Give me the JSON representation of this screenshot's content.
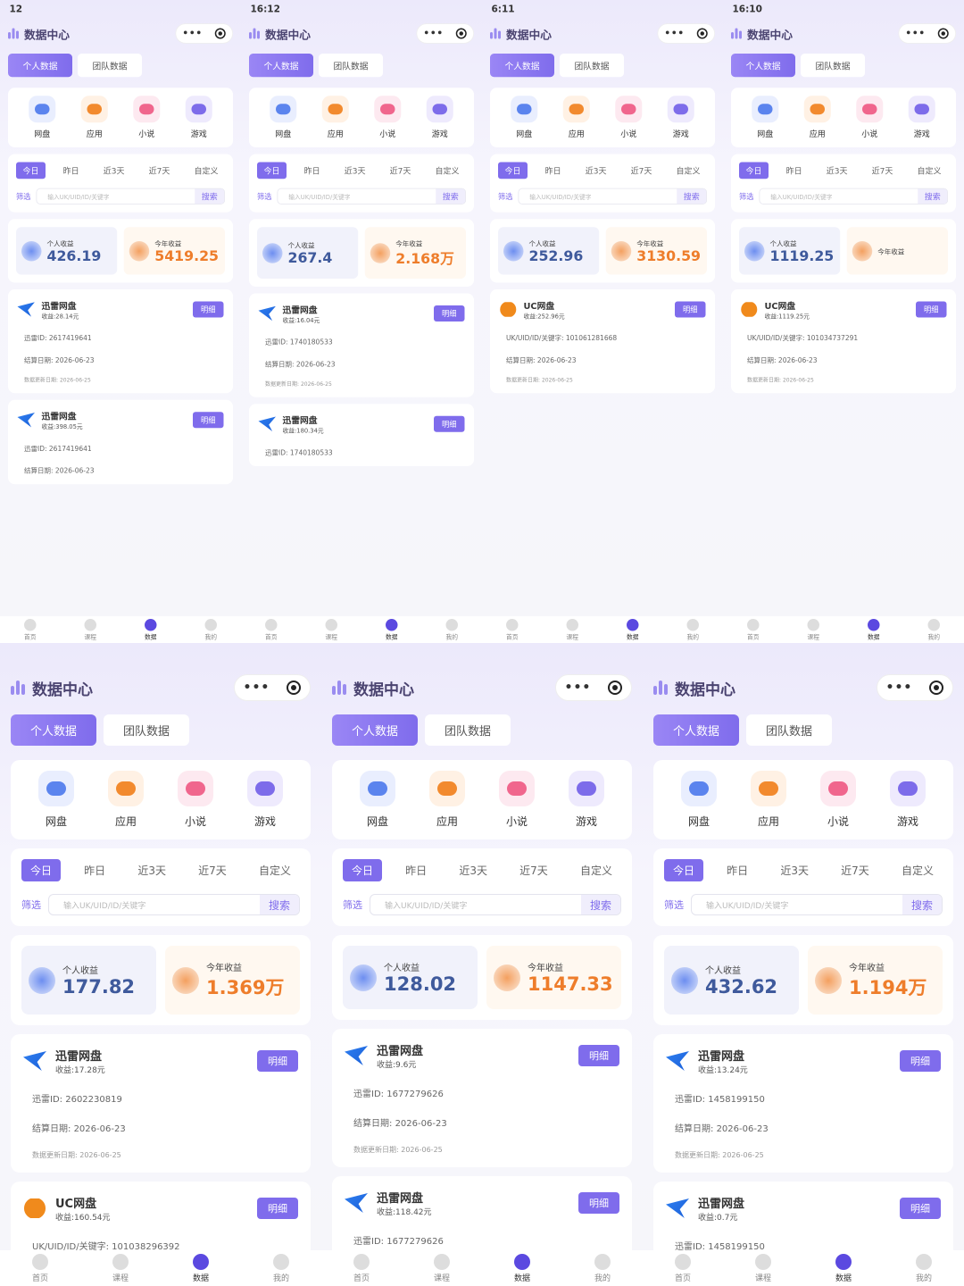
{
  "common": {
    "title": "数据中心",
    "tabs": [
      "个人数据",
      "团队数据"
    ],
    "apps": [
      "网盘",
      "应用",
      "小说",
      "游戏"
    ],
    "periods": [
      "今日",
      "昨日",
      "近3天",
      "近7天",
      "自定义"
    ],
    "filter": "筛选",
    "placeholder": "输入UK/UID/ID/关键字",
    "search": "搜索",
    "personal_label": "个人收益",
    "year_label": "今年收益",
    "detail": "明细",
    "settle_label": "结算日期:",
    "update_label": "数据更新日期:",
    "nav": [
      "首页",
      "课程",
      "数据",
      "我的"
    ]
  },
  "panels": [
    {
      "time": "12",
      "personal": "426.19",
      "year": "5419.25",
      "cards": [
        {
          "name": "迅雷网盘",
          "income": "收益:28.14元",
          "id_label": "迅雷ID:",
          "id": "2617419641",
          "settle": "2026-06-23",
          "update": "2026-06-25"
        },
        {
          "name": "迅雷网盘",
          "income": "收益:398.05元",
          "id_label": "迅雷ID:",
          "id": "2617419641",
          "settle": "2026-06-23"
        }
      ]
    },
    {
      "time": "16:12",
      "personal": "267.4",
      "year": "2.168万",
      "cards": [
        {
          "name": "迅雷网盘",
          "income": "收益:16.04元",
          "id_label": "迅雷ID:",
          "id": "1740180533",
          "settle": "2026-06-23",
          "update": "2026-06-25"
        },
        {
          "name": "迅雷网盘",
          "income": "收益:180.34元",
          "id_label": "迅雷ID:",
          "id": "1740180533"
        }
      ]
    },
    {
      "time": "6:11",
      "personal": "252.96",
      "year": "3130.59",
      "cards": [
        {
          "name": "UC网盘",
          "income": "收益:252.96元",
          "id_label": "UK/UID/ID/关键字:",
          "id": "101061281668",
          "settle": "2026-06-23",
          "update": "2026-06-25"
        }
      ]
    },
    {
      "time": "16:10",
      "personal": "1119.25",
      "cards": [
        {
          "name": "UC网盘",
          "income": "收益:1119.25元",
          "id_label": "UK/UID/ID/关键字:",
          "id": "101034737291",
          "settle": "2026-06-23",
          "update": "2026-06-25"
        }
      ]
    },
    {
      "personal": "177.82",
      "year": "1.369万",
      "cards": [
        {
          "name": "迅雷网盘",
          "income": "收益:17.28元",
          "id_label": "迅雷ID:",
          "id": "2602230819",
          "settle": "2026-06-23",
          "update": "2026-06-25"
        },
        {
          "name": "UC网盘",
          "income": "收益:160.54元",
          "id_label": "UK/UID/ID/关键字:",
          "id": "101038296392"
        }
      ]
    },
    {
      "personal": "128.02",
      "year": "1147.33",
      "cards": [
        {
          "name": "迅雷网盘",
          "income": "收益:9.6元",
          "id_label": "迅雷ID:",
          "id": "1677279626",
          "settle": "2026-06-23",
          "update": "2026-06-25"
        },
        {
          "name": "迅雷网盘",
          "income": "收益:118.42元",
          "id_label": "迅雷ID:",
          "id": "1677279626"
        }
      ]
    },
    {
      "personal": "432.62",
      "year": "1.194万",
      "cards": [
        {
          "name": "迅雷网盘",
          "income": "收益:13.24元",
          "id_label": "迅雷ID:",
          "id": "1458199150",
          "settle": "2026-06-23",
          "update": "2026-06-25"
        },
        {
          "name": "迅雷网盘",
          "income": "收益:0.7元",
          "id_label": "迅雷ID:",
          "id": "1458199150"
        }
      ]
    }
  ]
}
